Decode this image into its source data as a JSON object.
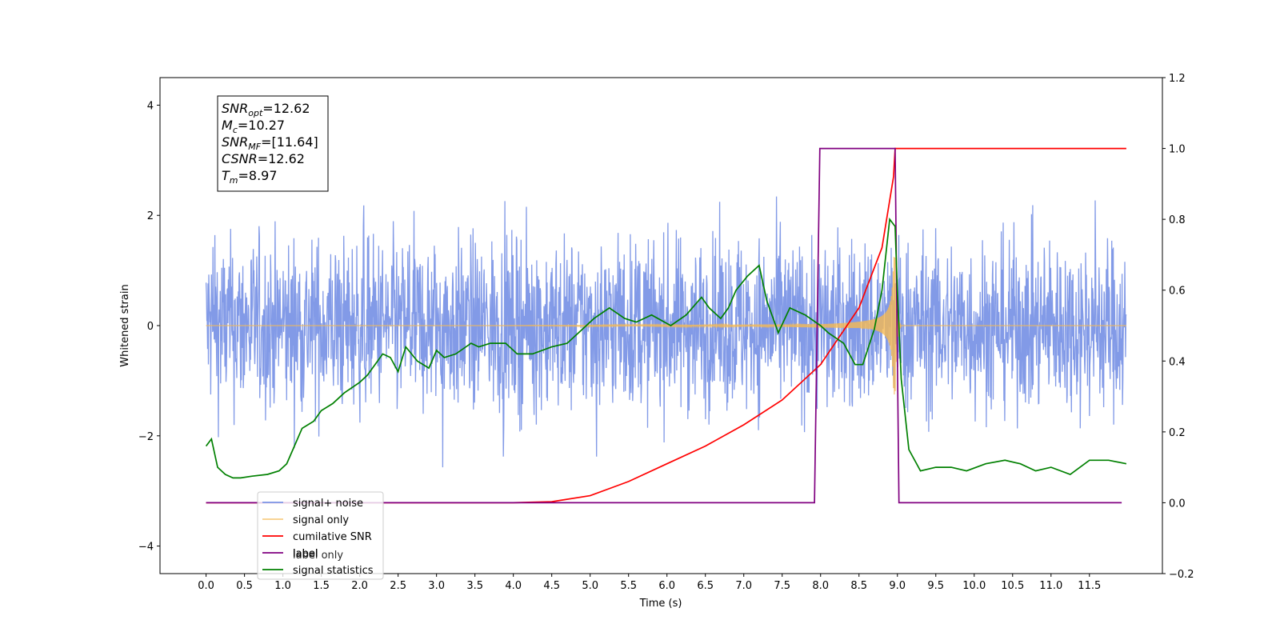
{
  "chart_data": {
    "type": "line",
    "xlabel": "Time (s)",
    "ylabel": "Whitened strain",
    "xlim": [
      -0.6,
      12.45
    ],
    "ylim": [
      -4.5,
      4.5
    ],
    "y2lim": [
      -0.2,
      1.2
    ],
    "x_ticks": [
      "0.0",
      "0.5",
      "1.0",
      "1.5",
      "2.0",
      "2.5",
      "3.0",
      "3.5",
      "4.0",
      "4.5",
      "5.0",
      "5.5",
      "6.0",
      "6.5",
      "7.0",
      "7.5",
      "8.0",
      "8.5",
      "9.0",
      "9.5",
      "10.0",
      "10.5",
      "11.0",
      "11.5"
    ],
    "y_ticks": [
      "4",
      "2",
      "0",
      "−2",
      "−4"
    ],
    "y2_ticks": [
      "1.2",
      "1.0",
      "0.8",
      "0.6",
      "0.4",
      "0.2",
      "0.0",
      "−0.2"
    ],
    "legend_position": "lower-left",
    "annotation": {
      "lines": [
        {
          "base": "SNR",
          "sub": "opt",
          "value": "=12.62"
        },
        {
          "base": "M",
          "sub": "c",
          "value": "=10.27"
        },
        {
          "base": "SNR",
          "sub": "MF",
          "value": "=[11.64]"
        },
        {
          "base": "CSNR",
          "sub": "",
          "value": "=12.62"
        },
        {
          "base": "T",
          "sub": "m",
          "value": "=8.97"
        }
      ]
    },
    "series": [
      {
        "name": "signal+ noise",
        "color": "#7b95e6",
        "axis": "left",
        "kind": "noise",
        "amplitude": 1.2,
        "x_start": 0.0,
        "x_end": 11.98
      },
      {
        "name": "signal only",
        "color": "#f5b953",
        "axis": "left",
        "kind": "chirp",
        "t_merger": 8.97,
        "x_start": 0.0,
        "x_end": 11.98
      },
      {
        "name": "cumilative SNR",
        "color": "#ff0000",
        "axis": "right",
        "x": [
          0.0,
          4.0,
          4.5,
          5.0,
          5.5,
          6.0,
          6.5,
          7.0,
          7.5,
          8.0,
          8.5,
          8.8,
          8.95,
          8.97,
          8.98,
          11.98
        ],
        "y": [
          0.0,
          0.0,
          0.003,
          0.02,
          0.06,
          0.11,
          0.16,
          0.22,
          0.29,
          0.39,
          0.55,
          0.72,
          0.92,
          1.0,
          1.0,
          1.0
        ]
      },
      {
        "name": "label",
        "color": "#800080",
        "axis": "right",
        "x": [
          0.0,
          7.92,
          7.99,
          8.91,
          8.97,
          9.02,
          11.92
        ],
        "y": [
          0.0,
          0.0,
          1.0,
          1.0,
          1.0,
          0.0,
          0.0
        ]
      },
      {
        "name": "label only",
        "color": "#c0c0c0",
        "axis": "right",
        "x": [],
        "y": []
      },
      {
        "name": "signal statistics",
        "color": "#008000",
        "axis": "right",
        "x": [
          0.0,
          0.07,
          0.15,
          0.25,
          0.35,
          0.45,
          0.6,
          0.8,
          0.95,
          1.05,
          1.15,
          1.25,
          1.4,
          1.5,
          1.65,
          1.8,
          2.0,
          2.1,
          2.2,
          2.3,
          2.4,
          2.5,
          2.6,
          2.75,
          2.9,
          3.0,
          3.1,
          3.25,
          3.45,
          3.55,
          3.7,
          3.9,
          4.05,
          4.25,
          4.5,
          4.7,
          4.85,
          5.05,
          5.25,
          5.45,
          5.6,
          5.8,
          6.05,
          6.25,
          6.45,
          6.55,
          6.7,
          6.8,
          6.9,
          7.05,
          7.2,
          7.3,
          7.45,
          7.6,
          7.8,
          8.0,
          8.1,
          8.3,
          8.45,
          8.55,
          8.7,
          8.8,
          8.9,
          8.97,
          9.0,
          9.05,
          9.15,
          9.3,
          9.5,
          9.7,
          9.9,
          10.15,
          10.4,
          10.6,
          10.8,
          11.0,
          11.25,
          11.5,
          11.75,
          11.98
        ],
        "y": [
          0.16,
          0.18,
          0.1,
          0.08,
          0.07,
          0.07,
          0.075,
          0.08,
          0.09,
          0.11,
          0.16,
          0.21,
          0.23,
          0.26,
          0.28,
          0.31,
          0.34,
          0.36,
          0.39,
          0.42,
          0.41,
          0.37,
          0.44,
          0.4,
          0.38,
          0.43,
          0.41,
          0.42,
          0.45,
          0.44,
          0.45,
          0.45,
          0.42,
          0.42,
          0.44,
          0.45,
          0.48,
          0.52,
          0.55,
          0.52,
          0.51,
          0.53,
          0.5,
          0.53,
          0.58,
          0.55,
          0.52,
          0.55,
          0.6,
          0.64,
          0.67,
          0.57,
          0.48,
          0.55,
          0.53,
          0.5,
          0.48,
          0.45,
          0.39,
          0.39,
          0.49,
          0.6,
          0.8,
          0.78,
          0.6,
          0.35,
          0.15,
          0.09,
          0.1,
          0.1,
          0.09,
          0.11,
          0.12,
          0.11,
          0.09,
          0.1,
          0.08,
          0.12,
          0.12,
          0.11
        ]
      }
    ]
  }
}
